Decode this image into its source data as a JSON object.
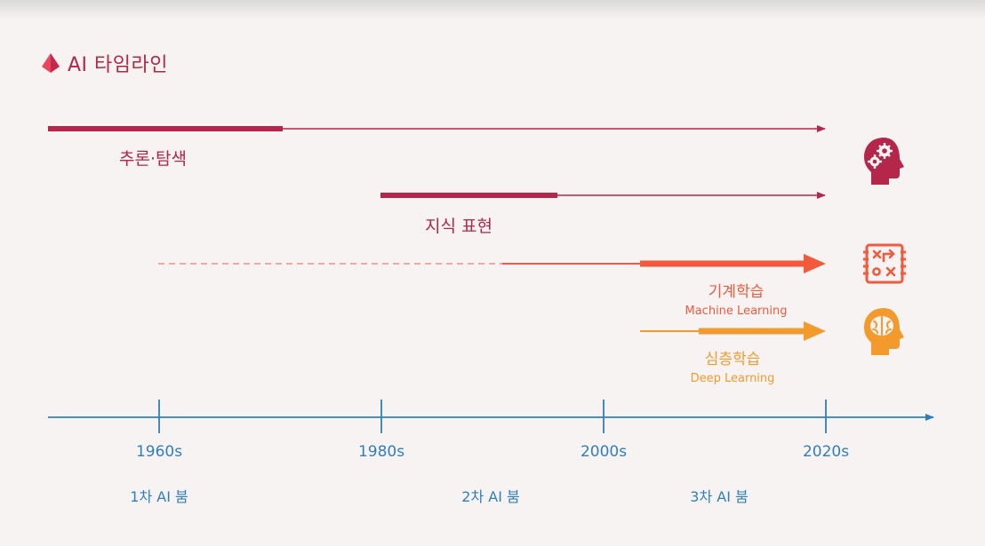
{
  "title": "AI 타임라인",
  "colors": {
    "crimson": "#b4264a",
    "orange_red": "#f25a3c",
    "orange": "#f39a2d",
    "axis_blue": "#2f7fbf"
  },
  "tracks": [
    {
      "label": "추론·탐색",
      "icon": "head-gears-icon"
    },
    {
      "label": "지식 표현"
    },
    {
      "label": "기계학습",
      "label_en": "Machine Learning",
      "icon": "strategy-board-icon"
    },
    {
      "label": "심층학습",
      "label_en": "Deep Learning",
      "icon": "head-brain-icon"
    }
  ],
  "axis": {
    "ticks": [
      "1960s",
      "1980s",
      "2000s",
      "2020s"
    ],
    "booms": [
      "1차 AI 붐",
      "2차 AI 붐",
      "3차 AI 붐"
    ]
  }
}
